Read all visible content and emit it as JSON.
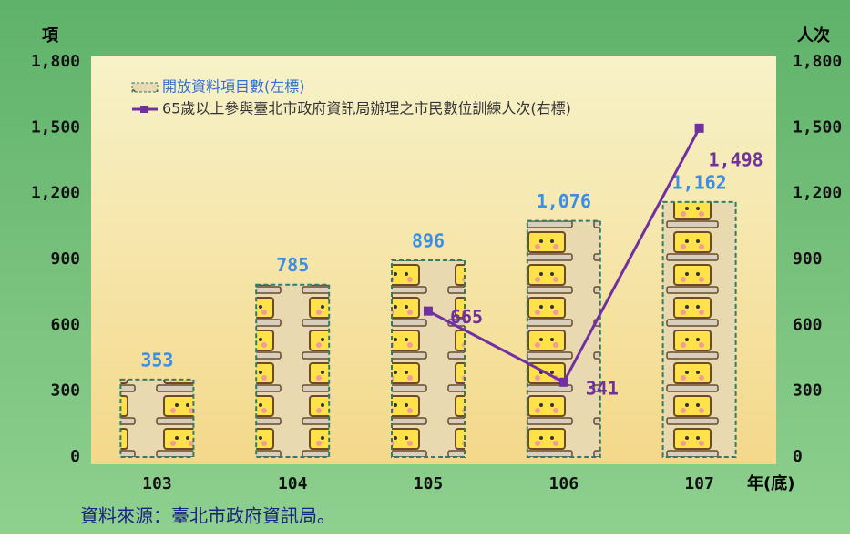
{
  "chart_data": {
    "type": "bar",
    "y_label": "項",
    "y2_label": "人次",
    "x_label": "年(底)",
    "source": "資料來源：臺北市政府資訊局。",
    "categories": [
      "103",
      "104",
      "105",
      "106",
      "107"
    ],
    "series": [
      {
        "name": "開放資料項目數(左標)",
        "type": "bar",
        "color": "#2e7d6b",
        "values": [
          353,
          785,
          896,
          1076,
          1162
        ],
        "value_labels": [
          "353",
          "785",
          "896",
          "1,076",
          "1,162"
        ]
      },
      {
        "name": "65歲以上參與臺北市政府資訊局辦理之市民數位訓練人次(右標)",
        "type": "line",
        "axis": "y2",
        "color": "#7030a0",
        "values": [
          null,
          null,
          665,
          341,
          1498
        ],
        "value_labels": [
          null,
          null,
          "665",
          "341",
          "1,498"
        ]
      }
    ],
    "ylim": [
      0,
      1800
    ],
    "yticks": [
      0,
      300,
      600,
      900,
      {
        "value": 1200,
        "label": "1,200"
      },
      {
        "value": 1500,
        "label": "1,500"
      },
      {
        "value": 1800,
        "label": "1,800"
      }
    ],
    "y2lim": [
      0,
      1800
    ],
    "y2ticks": [
      0,
      300,
      600,
      900,
      {
        "value": 1200,
        "label": "1,200"
      },
      {
        "value": 1500,
        "label": "1,500"
      },
      {
        "value": 1800,
        "label": "1,800"
      }
    ]
  }
}
